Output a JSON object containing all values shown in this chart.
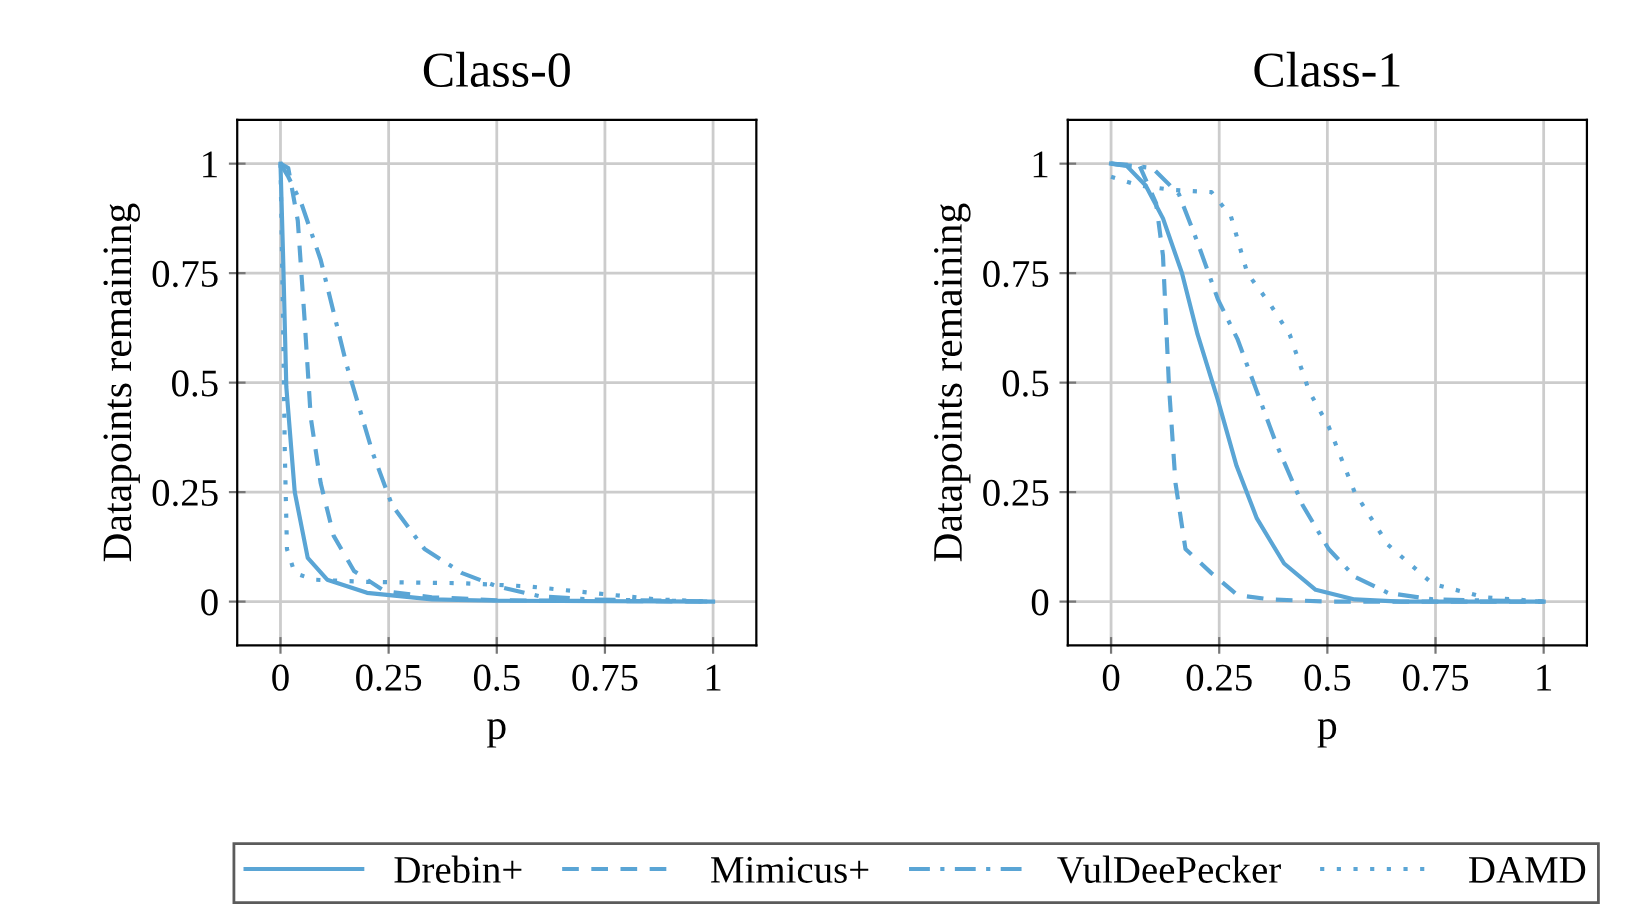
{
  "chart_data": [
    {
      "type": "line",
      "title": "Class-0",
      "xlabel": "p",
      "ylabel": "Datapoints remaining",
      "xlim": [
        -0.1,
        1.1
      ],
      "ylim": [
        -0.1,
        1.1
      ],
      "xticks": [
        0,
        0.25,
        0.5,
        0.75,
        1
      ],
      "yticks": [
        0,
        0.25,
        0.5,
        0.75,
        1
      ],
      "grid": true,
      "marker": "none",
      "legend": "bottom",
      "series": [
        {
          "name": "Drebin+",
          "color": "#5aa5d5",
          "line_style": "solid",
          "x": [
            0,
            0.006,
            0.0135,
            0.033,
            0.063,
            0.108,
            0.2,
            0.35,
            0.5,
            1
          ],
          "values": [
            1,
            0.79,
            0.49,
            0.25,
            0.1,
            0.05,
            0.02,
            0.005,
            0.002,
            0
          ]
        },
        {
          "name": "Mimicus+",
          "color": "#5aa5d5",
          "line_style": "dashed",
          "x": [
            0,
            0.018,
            0.04,
            0.056,
            0.07,
            0.093,
            0.123,
            0.17,
            0.24,
            0.35,
            0.5,
            1
          ],
          "values": [
            1,
            0.99,
            0.87,
            0.64,
            0.42,
            0.27,
            0.15,
            0.07,
            0.024,
            0.01,
            0.003,
            0
          ]
        },
        {
          "name": "VulDeePecker",
          "color": "#5aa5d5",
          "line_style": "dashdot",
          "x": [
            0,
            0.018,
            0.048,
            0.093,
            0.153,
            0.213,
            0.258,
            0.333,
            0.42,
            0.5,
            0.6,
            0.72,
            1
          ],
          "values": [
            1,
            0.97,
            0.91,
            0.78,
            0.54,
            0.34,
            0.22,
            0.12,
            0.065,
            0.035,
            0.012,
            0.005,
            0
          ]
        },
        {
          "name": "DAMD",
          "color": "#5aa5d5",
          "line_style": "dotted",
          "x": [
            0,
            0.006,
            0.01,
            0.015,
            0.033,
            0.078,
            0.2,
            0.42,
            0.57,
            0.72,
            0.87,
            1
          ],
          "values": [
            1,
            0.64,
            0.34,
            0.12,
            0.065,
            0.05,
            0.045,
            0.042,
            0.035,
            0.02,
            0.005,
            0
          ]
        }
      ]
    },
    {
      "type": "line",
      "title": "Class-1",
      "xlabel": "p",
      "ylabel": "Datapoints remaining",
      "xlim": [
        -0.1,
        1.1
      ],
      "ylim": [
        -0.1,
        1.1
      ],
      "xticks": [
        0,
        0.25,
        0.5,
        0.75,
        1
      ],
      "yticks": [
        0,
        0.25,
        0.5,
        0.75,
        1
      ],
      "grid": true,
      "marker": "none",
      "series": [
        {
          "color": "#5aa5d5",
          "line_style": "solid",
          "x": [
            0,
            0.036,
            0.08,
            0.12,
            0.164,
            0.2,
            0.247,
            0.29,
            0.337,
            0.4,
            0.473,
            0.563,
            0.67,
            1
          ],
          "values": [
            1,
            0.995,
            0.95,
            0.875,
            0.75,
            0.61,
            0.46,
            0.31,
            0.19,
            0.087,
            0.027,
            0.005,
            0,
            0
          ]
        },
        {
          "color": "#5aa5d5",
          "line_style": "dashed",
          "x": [
            0,
            0.066,
            0.104,
            0.12,
            0.134,
            0.149,
            0.172,
            0.232,
            0.292,
            0.367,
            0.5,
            1
          ],
          "values": [
            1,
            0.995,
            0.91,
            0.79,
            0.49,
            0.27,
            0.12,
            0.065,
            0.015,
            0.005,
            0,
            0
          ]
        },
        {
          "color": "#5aa5d5",
          "line_style": "dashdot",
          "x": [
            0,
            0.096,
            0.157,
            0.2,
            0.247,
            0.292,
            0.337,
            0.382,
            0.443,
            0.503,
            0.563,
            0.64,
            0.744,
            1
          ],
          "values": [
            1,
            0.99,
            0.93,
            0.82,
            0.69,
            0.6,
            0.48,
            0.36,
            0.22,
            0.12,
            0.057,
            0.02,
            0.005,
            0
          ]
        },
        {
          "color": "#5aa5d5",
          "line_style": "dotted",
          "x": [
            0,
            0.066,
            0.142,
            0.232,
            0.277,
            0.315,
            0.367,
            0.413,
            0.458,
            0.503,
            0.563,
            0.64,
            0.744,
            0.864,
            1
          ],
          "values": [
            0.97,
            0.95,
            0.94,
            0.935,
            0.88,
            0.75,
            0.68,
            0.61,
            0.48,
            0.4,
            0.25,
            0.13,
            0.04,
            0.01,
            0
          ]
        }
      ]
    }
  ]
}
